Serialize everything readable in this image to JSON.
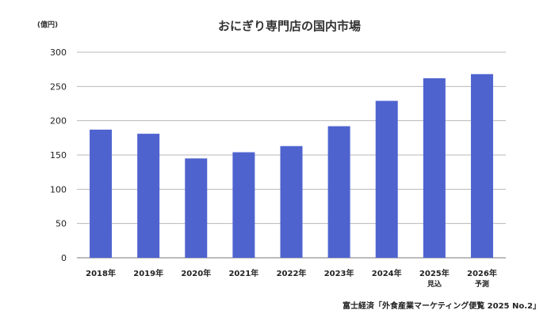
{
  "chart_data": {
    "type": "bar",
    "title": "おにぎり専門店の国内市場",
    "unit_label": "(億円)",
    "categories": [
      "2018年",
      "2019年",
      "2020年",
      "2021年",
      "2022年",
      "2023年",
      "2024年",
      "2025年",
      "2026年"
    ],
    "category_notes": [
      "",
      "",
      "",
      "",
      "",
      "",
      "",
      "見込",
      "予測"
    ],
    "values": [
      187,
      181,
      145,
      154,
      163,
      192,
      229,
      262,
      268
    ],
    "ylim": [
      0,
      300
    ],
    "yticks": [
      0,
      50,
      100,
      150,
      200,
      250,
      300
    ],
    "bar_color": "#4f63cf",
    "grid": true,
    "legend": "none"
  },
  "source": "富士経済「外食産業マーケティング便覧 2025 No.2」"
}
